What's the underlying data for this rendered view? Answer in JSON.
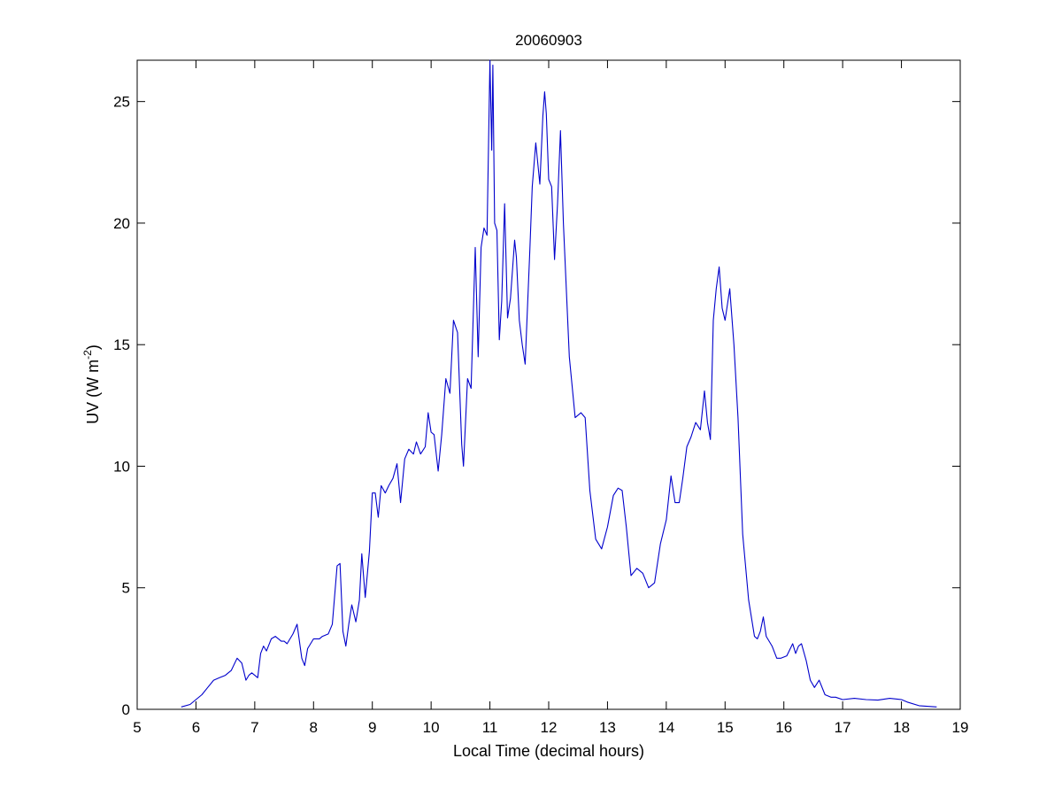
{
  "colors": {
    "background": "#ffffff",
    "axes": "#000000",
    "line": "#0000cc"
  },
  "chart_data": {
    "type": "line",
    "title": "20060903",
    "xlabel": "Local Time (decimal hours)",
    "ylabel": "UV (W m",
    "ylabel_superscript": "-2",
    "ylabel_suffix": ")",
    "xlim": [
      5,
      19
    ],
    "ylim": [
      0,
      26.7
    ],
    "xticks": [
      5,
      6,
      7,
      8,
      9,
      10,
      11,
      12,
      13,
      14,
      15,
      16,
      17,
      18,
      19
    ],
    "yticks": [
      0,
      5,
      10,
      15,
      20,
      25
    ],
    "grid": false,
    "box": true,
    "series": [
      {
        "x": [
          5.75,
          5.9,
          6.0,
          6.1,
          6.2,
          6.3,
          6.4,
          6.5,
          6.6,
          6.7,
          6.78,
          6.85,
          6.9,
          6.95,
          7.0,
          7.05,
          7.1,
          7.15,
          7.2,
          7.28,
          7.35,
          7.45,
          7.5,
          7.55,
          7.65,
          7.72,
          7.8,
          7.85,
          7.9,
          8.0,
          8.1,
          8.15,
          8.25,
          8.32,
          8.4,
          8.45,
          8.5,
          8.55,
          8.6,
          8.65,
          8.72,
          8.78,
          8.82,
          8.88,
          8.95,
          9.0,
          9.05,
          9.1,
          9.15,
          9.22,
          9.28,
          9.35,
          9.42,
          9.48,
          9.55,
          9.62,
          9.7,
          9.75,
          9.82,
          9.9,
          9.95,
          10.0,
          10.05,
          10.12,
          10.18,
          10.25,
          10.32,
          10.38,
          10.45,
          10.52,
          10.55,
          10.62,
          10.68,
          10.75,
          10.8,
          10.85,
          10.9,
          10.95,
          11.0,
          11.03,
          11.05,
          11.08,
          11.12,
          11.16,
          11.2,
          11.25,
          11.3,
          11.35,
          11.42,
          11.45,
          11.5,
          11.55,
          11.6,
          11.68,
          11.72,
          11.78,
          11.85,
          11.9,
          11.93,
          11.96,
          12.0,
          12.05,
          12.1,
          12.15,
          12.2,
          12.25,
          12.35,
          12.45,
          12.55,
          12.62,
          12.7,
          12.8,
          12.9,
          13.0,
          13.1,
          13.18,
          13.25,
          13.32,
          13.4,
          13.5,
          13.6,
          13.7,
          13.8,
          13.9,
          14.0,
          14.08,
          14.15,
          14.22,
          14.28,
          14.35,
          14.42,
          14.5,
          14.58,
          14.65,
          14.7,
          14.75,
          14.8,
          14.85,
          14.9,
          14.95,
          15.0,
          15.08,
          15.15,
          15.22,
          15.3,
          15.4,
          15.5,
          15.55,
          15.6,
          15.65,
          15.7,
          15.8,
          15.88,
          15.95,
          16.05,
          16.15,
          16.2,
          16.25,
          16.3,
          16.38,
          16.45,
          16.52,
          16.6,
          16.7,
          16.8,
          16.88,
          17.0,
          17.2,
          17.4,
          17.6,
          17.8,
          18.0,
          18.1,
          18.3,
          18.6
        ],
        "y": [
          0.1,
          0.2,
          0.4,
          0.6,
          0.9,
          1.2,
          1.3,
          1.4,
          1.6,
          2.1,
          1.9,
          1.2,
          1.4,
          1.5,
          1.4,
          1.3,
          2.3,
          2.6,
          2.4,
          2.9,
          3.0,
          2.8,
          2.8,
          2.7,
          3.1,
          3.5,
          2.1,
          1.8,
          2.5,
          2.9,
          2.9,
          3.0,
          3.1,
          3.5,
          5.9,
          6.0,
          3.2,
          2.6,
          3.5,
          4.3,
          3.6,
          4.5,
          6.4,
          4.6,
          6.5,
          8.9,
          8.9,
          7.9,
          9.2,
          8.9,
          9.2,
          9.5,
          10.1,
          8.5,
          10.3,
          10.7,
          10.5,
          11.0,
          10.5,
          10.8,
          12.2,
          11.4,
          11.3,
          9.8,
          11.3,
          13.6,
          13.0,
          16.0,
          15.5,
          10.9,
          10.0,
          13.6,
          13.2,
          19.0,
          14.5,
          19.0,
          19.8,
          19.5,
          26.7,
          23.0,
          26.5,
          20.0,
          19.7,
          15.2,
          16.8,
          20.8,
          16.1,
          16.9,
          19.3,
          18.6,
          16.0,
          15.0,
          14.2,
          18.9,
          21.5,
          23.3,
          21.6,
          24.4,
          25.4,
          24.5,
          21.8,
          21.5,
          18.5,
          20.8,
          23.8,
          20.0,
          14.5,
          12.0,
          12.2,
          12.0,
          9.0,
          7.0,
          6.6,
          7.5,
          8.8,
          9.1,
          9.0,
          7.5,
          5.5,
          5.8,
          5.6,
          5.0,
          5.2,
          6.8,
          7.8,
          9.6,
          8.5,
          8.5,
          9.5,
          10.8,
          11.2,
          11.8,
          11.5,
          13.1,
          11.8,
          11.1,
          16.0,
          17.3,
          18.2,
          16.5,
          16.0,
          17.3,
          15.0,
          12.0,
          7.2,
          4.5,
          3.0,
          2.9,
          3.2,
          3.8,
          3.0,
          2.6,
          2.1,
          2.1,
          2.2,
          2.7,
          2.3,
          2.6,
          2.7,
          2.0,
          1.2,
          0.9,
          1.2,
          0.6,
          0.5,
          0.5,
          0.4,
          0.45,
          0.4,
          0.38,
          0.45,
          0.4,
          0.3,
          0.15,
          0.1
        ]
      }
    ]
  }
}
